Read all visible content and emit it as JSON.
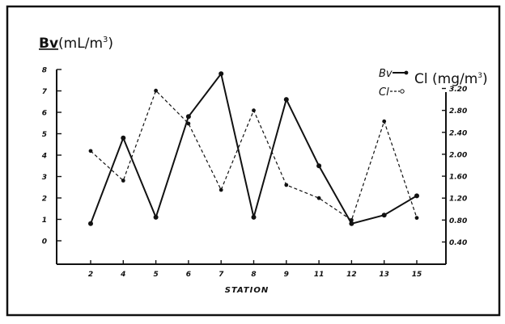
{
  "chart_data": {
    "type": "line",
    "xlabel": "STATION",
    "categories": [
      "2",
      "4",
      "5",
      "6",
      "7",
      "8",
      "9",
      "11",
      "12",
      "13",
      "15"
    ],
    "left_axis": {
      "label_prefix": "Bv",
      "label_unit": "(mL/m",
      "label_sup": "3",
      "label_close": ")",
      "ylim": [
        0,
        8
      ],
      "ticks": [
        "0",
        "1",
        "2",
        "3",
        "4",
        "5",
        "6",
        "7",
        "8"
      ]
    },
    "right_axis": {
      "label": "Cl (mg/m",
      "label_sup": "3",
      "label_close": ")",
      "ylim": [
        0.4,
        3.2
      ],
      "ticks": [
        "0.40",
        "0.80",
        "1.20",
        "1.60",
        "2.00",
        "2.40",
        "2.80",
        "3.20"
      ]
    },
    "legend": [
      {
        "name": "Bv",
        "style": "solid"
      },
      {
        "name": "Cl",
        "style": "dashed"
      }
    ],
    "series": [
      {
        "name": "Bv",
        "axis": "left",
        "style": "solid",
        "values": [
          0.8,
          4.8,
          1.1,
          5.8,
          7.8,
          1.1,
          6.6,
          3.5,
          0.8,
          1.2,
          2.1
        ]
      },
      {
        "name": "Cl",
        "axis": "right",
        "style": "dashed",
        "values": [
          2.06,
          1.52,
          3.16,
          2.56,
          1.35,
          2.8,
          1.44,
          1.2,
          0.8,
          2.6,
          0.84
        ]
      }
    ]
  }
}
